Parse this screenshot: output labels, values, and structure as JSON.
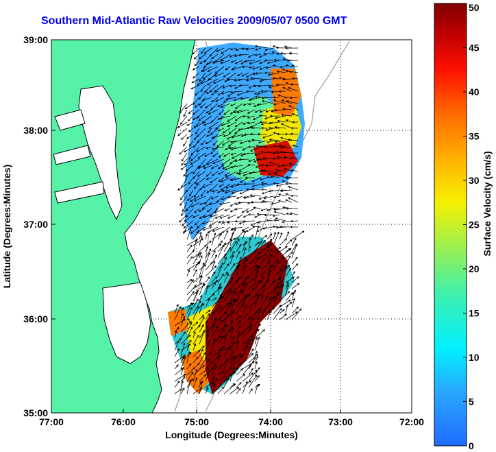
{
  "title": "Southern Mid-Atlantic Raw Velocities 2009/05/07 0500 GMT",
  "axes": {
    "xlabel": "Longitude (Degrees:Minutes)",
    "ylabel": "Latitude (Degrees:Minutes)",
    "xticks": [
      "77:00",
      "76:00",
      "75:00",
      "74:00",
      "73:00",
      "72:00"
    ],
    "yticks": [
      "39:00",
      "38:00",
      "37:00",
      "36:00",
      "35:00"
    ]
  },
  "colorbar": {
    "label": "Surface Velocity (cm/s)",
    "ticks": [
      "0",
      "5",
      "10",
      "15",
      "20",
      "25",
      "30",
      "35",
      "40",
      "45",
      "50"
    ],
    "min": 0,
    "max": 50
  },
  "colors": {
    "land": "#55f2a8",
    "title": "#0000ee"
  }
}
